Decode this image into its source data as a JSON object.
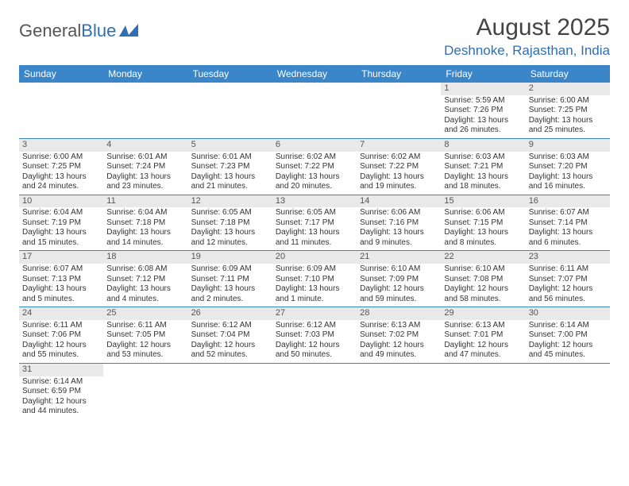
{
  "logo": {
    "text1": "General",
    "text2": "Blue"
  },
  "title": "August 2025",
  "location": "Deshnoke, Rajasthan, India",
  "colors": {
    "header_bg": "#3a86c8",
    "accent": "#2f6fb3",
    "daynum_bg": "#e9e9e9",
    "text": "#333333"
  },
  "dow": [
    "Sunday",
    "Monday",
    "Tuesday",
    "Wednesday",
    "Thursday",
    "Friday",
    "Saturday"
  ],
  "weeks": [
    [
      null,
      null,
      null,
      null,
      null,
      {
        "n": "1",
        "sr": "Sunrise: 5:59 AM",
        "ss": "Sunset: 7:26 PM",
        "d1": "Daylight: 13 hours",
        "d2": "and 26 minutes."
      },
      {
        "n": "2",
        "sr": "Sunrise: 6:00 AM",
        "ss": "Sunset: 7:25 PM",
        "d1": "Daylight: 13 hours",
        "d2": "and 25 minutes."
      }
    ],
    [
      {
        "n": "3",
        "sr": "Sunrise: 6:00 AM",
        "ss": "Sunset: 7:25 PM",
        "d1": "Daylight: 13 hours",
        "d2": "and 24 minutes."
      },
      {
        "n": "4",
        "sr": "Sunrise: 6:01 AM",
        "ss": "Sunset: 7:24 PM",
        "d1": "Daylight: 13 hours",
        "d2": "and 23 minutes."
      },
      {
        "n": "5",
        "sr": "Sunrise: 6:01 AM",
        "ss": "Sunset: 7:23 PM",
        "d1": "Daylight: 13 hours",
        "d2": "and 21 minutes."
      },
      {
        "n": "6",
        "sr": "Sunrise: 6:02 AM",
        "ss": "Sunset: 7:22 PM",
        "d1": "Daylight: 13 hours",
        "d2": "and 20 minutes."
      },
      {
        "n": "7",
        "sr": "Sunrise: 6:02 AM",
        "ss": "Sunset: 7:22 PM",
        "d1": "Daylight: 13 hours",
        "d2": "and 19 minutes."
      },
      {
        "n": "8",
        "sr": "Sunrise: 6:03 AM",
        "ss": "Sunset: 7:21 PM",
        "d1": "Daylight: 13 hours",
        "d2": "and 18 minutes."
      },
      {
        "n": "9",
        "sr": "Sunrise: 6:03 AM",
        "ss": "Sunset: 7:20 PM",
        "d1": "Daylight: 13 hours",
        "d2": "and 16 minutes."
      }
    ],
    [
      {
        "n": "10",
        "sr": "Sunrise: 6:04 AM",
        "ss": "Sunset: 7:19 PM",
        "d1": "Daylight: 13 hours",
        "d2": "and 15 minutes."
      },
      {
        "n": "11",
        "sr": "Sunrise: 6:04 AM",
        "ss": "Sunset: 7:18 PM",
        "d1": "Daylight: 13 hours",
        "d2": "and 14 minutes."
      },
      {
        "n": "12",
        "sr": "Sunrise: 6:05 AM",
        "ss": "Sunset: 7:18 PM",
        "d1": "Daylight: 13 hours",
        "d2": "and 12 minutes."
      },
      {
        "n": "13",
        "sr": "Sunrise: 6:05 AM",
        "ss": "Sunset: 7:17 PM",
        "d1": "Daylight: 13 hours",
        "d2": "and 11 minutes."
      },
      {
        "n": "14",
        "sr": "Sunrise: 6:06 AM",
        "ss": "Sunset: 7:16 PM",
        "d1": "Daylight: 13 hours",
        "d2": "and 9 minutes."
      },
      {
        "n": "15",
        "sr": "Sunrise: 6:06 AM",
        "ss": "Sunset: 7:15 PM",
        "d1": "Daylight: 13 hours",
        "d2": "and 8 minutes."
      },
      {
        "n": "16",
        "sr": "Sunrise: 6:07 AM",
        "ss": "Sunset: 7:14 PM",
        "d1": "Daylight: 13 hours",
        "d2": "and 6 minutes."
      }
    ],
    [
      {
        "n": "17",
        "sr": "Sunrise: 6:07 AM",
        "ss": "Sunset: 7:13 PM",
        "d1": "Daylight: 13 hours",
        "d2": "and 5 minutes."
      },
      {
        "n": "18",
        "sr": "Sunrise: 6:08 AM",
        "ss": "Sunset: 7:12 PM",
        "d1": "Daylight: 13 hours",
        "d2": "and 4 minutes."
      },
      {
        "n": "19",
        "sr": "Sunrise: 6:09 AM",
        "ss": "Sunset: 7:11 PM",
        "d1": "Daylight: 13 hours",
        "d2": "and 2 minutes."
      },
      {
        "n": "20",
        "sr": "Sunrise: 6:09 AM",
        "ss": "Sunset: 7:10 PM",
        "d1": "Daylight: 13 hours",
        "d2": "and 1 minute."
      },
      {
        "n": "21",
        "sr": "Sunrise: 6:10 AM",
        "ss": "Sunset: 7:09 PM",
        "d1": "Daylight: 12 hours",
        "d2": "and 59 minutes."
      },
      {
        "n": "22",
        "sr": "Sunrise: 6:10 AM",
        "ss": "Sunset: 7:08 PM",
        "d1": "Daylight: 12 hours",
        "d2": "and 58 minutes."
      },
      {
        "n": "23",
        "sr": "Sunrise: 6:11 AM",
        "ss": "Sunset: 7:07 PM",
        "d1": "Daylight: 12 hours",
        "d2": "and 56 minutes."
      }
    ],
    [
      {
        "n": "24",
        "sr": "Sunrise: 6:11 AM",
        "ss": "Sunset: 7:06 PM",
        "d1": "Daylight: 12 hours",
        "d2": "and 55 minutes."
      },
      {
        "n": "25",
        "sr": "Sunrise: 6:11 AM",
        "ss": "Sunset: 7:05 PM",
        "d1": "Daylight: 12 hours",
        "d2": "and 53 minutes."
      },
      {
        "n": "26",
        "sr": "Sunrise: 6:12 AM",
        "ss": "Sunset: 7:04 PM",
        "d1": "Daylight: 12 hours",
        "d2": "and 52 minutes."
      },
      {
        "n": "27",
        "sr": "Sunrise: 6:12 AM",
        "ss": "Sunset: 7:03 PM",
        "d1": "Daylight: 12 hours",
        "d2": "and 50 minutes."
      },
      {
        "n": "28",
        "sr": "Sunrise: 6:13 AM",
        "ss": "Sunset: 7:02 PM",
        "d1": "Daylight: 12 hours",
        "d2": "and 49 minutes."
      },
      {
        "n": "29",
        "sr": "Sunrise: 6:13 AM",
        "ss": "Sunset: 7:01 PM",
        "d1": "Daylight: 12 hours",
        "d2": "and 47 minutes."
      },
      {
        "n": "30",
        "sr": "Sunrise: 6:14 AM",
        "ss": "Sunset: 7:00 PM",
        "d1": "Daylight: 12 hours",
        "d2": "and 45 minutes."
      }
    ],
    [
      {
        "n": "31",
        "sr": "Sunrise: 6:14 AM",
        "ss": "Sunset: 6:59 PM",
        "d1": "Daylight: 12 hours",
        "d2": "and 44 minutes."
      },
      null,
      null,
      null,
      null,
      null,
      null
    ]
  ]
}
